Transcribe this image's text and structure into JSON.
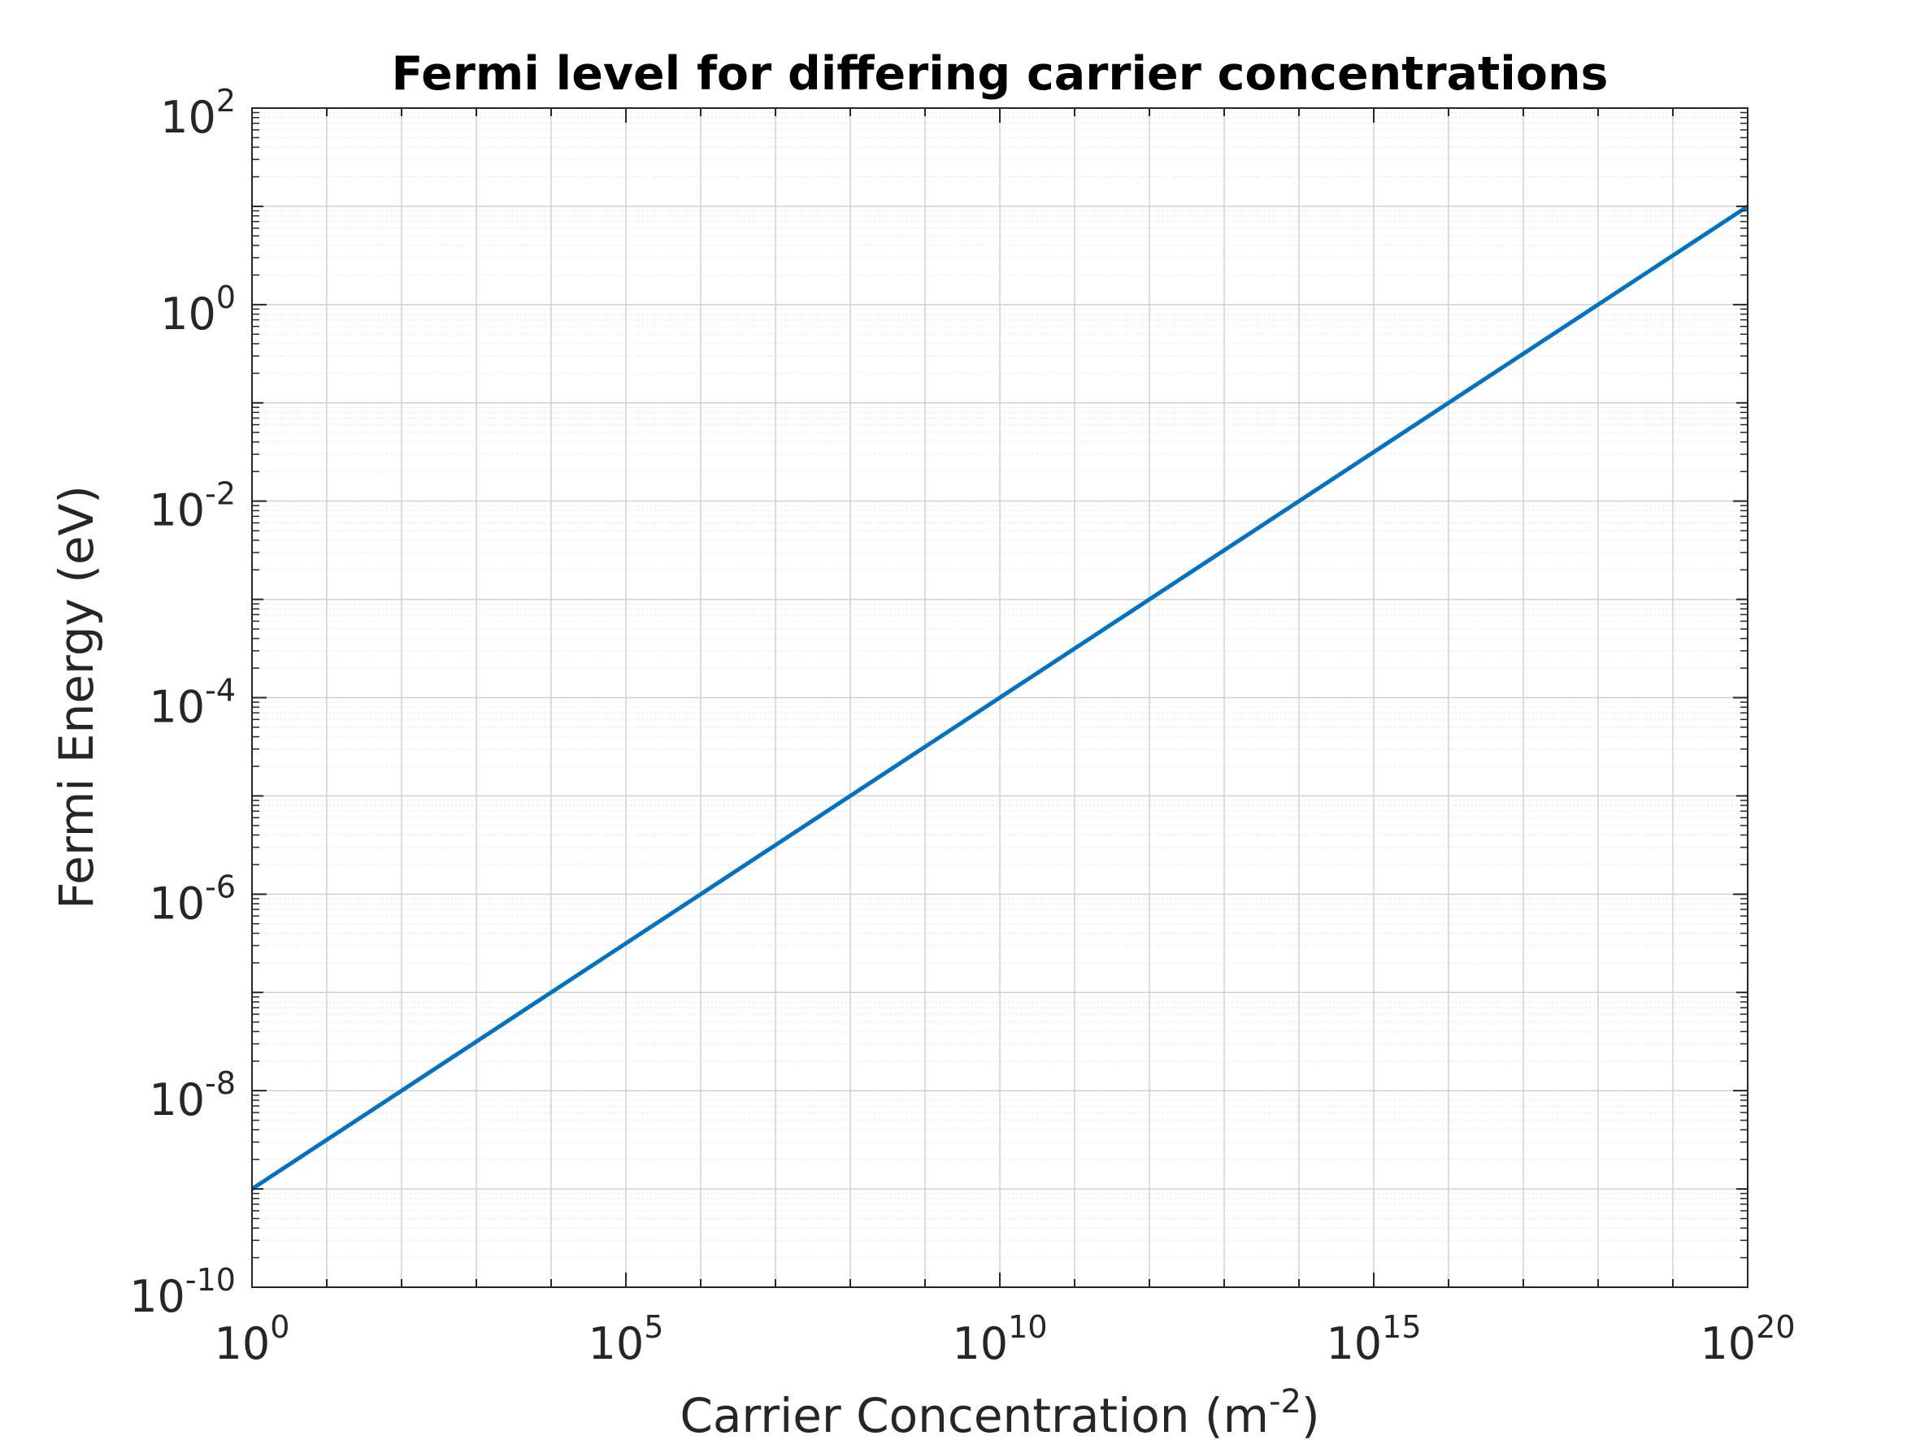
{
  "chart_data": {
    "type": "line",
    "title": "Fermi level for differing carrier concentrations",
    "xlabel": {
      "base": "Carrier Concentration (m",
      "sup": "-2",
      "tail": ")"
    },
    "ylabel": "Fermi Energy (eV)",
    "x_scale": "log",
    "y_scale": "log",
    "xlim": [
      1,
      1e+20
    ],
    "ylim": [
      1e-10,
      100
    ],
    "x_ticks": [
      {
        "base": "10",
        "exp": "0",
        "value": 1
      },
      {
        "base": "10",
        "exp": "5",
        "value": 100000.0
      },
      {
        "base": "10",
        "exp": "10",
        "value": 10000000000.0
      },
      {
        "base": "10",
        "exp": "15",
        "value": 1000000000000000.0
      },
      {
        "base": "10",
        "exp": "20",
        "value": 1e+20
      }
    ],
    "y_ticks": [
      {
        "base": "10",
        "exp": "-10",
        "value": 1e-10
      },
      {
        "base": "10",
        "exp": "-8",
        "value": 1e-08
      },
      {
        "base": "10",
        "exp": "-6",
        "value": 1e-06
      },
      {
        "base": "10",
        "exp": "-4",
        "value": 0.0001
      },
      {
        "base": "10",
        "exp": "-2",
        "value": 0.01
      },
      {
        "base": "10",
        "exp": "0",
        "value": 1
      },
      {
        "base": "10",
        "exp": "2",
        "value": 100
      }
    ],
    "grid": true,
    "minor_grid": true,
    "series": [
      {
        "color": "#0072BD",
        "x": [
          1,
          100000.0,
          10000000000.0,
          1000000000000000.0,
          1e+20
        ],
        "y": [
          1e-09,
          3.16e-07,
          0.0001,
          0.0316,
          10
        ]
      }
    ]
  }
}
